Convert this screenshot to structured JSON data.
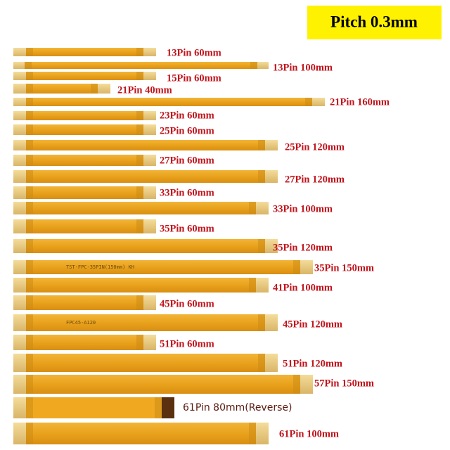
{
  "badge": "Pitch 0.3mm",
  "cables": [
    {
      "label": "13Pin 60mm"
    },
    {
      "label": "13Pin 100mm"
    },
    {
      "label": "15Pin 60mm"
    },
    {
      "label": "21Pin 40mm"
    },
    {
      "label": "21Pin 160mm"
    },
    {
      "label": "23Pin 60mm"
    },
    {
      "label": "25Pin 60mm"
    },
    {
      "label": "25Pin 120mm"
    },
    {
      "label": "27Pin 60mm"
    },
    {
      "label": "27Pin 120mm"
    },
    {
      "label": "33Pin 60mm"
    },
    {
      "label": "33Pin 100mm"
    },
    {
      "label": "35Pin 60mm"
    },
    {
      "label": "35Pin 120mm"
    },
    {
      "label": "35Pin 150mm",
      "print": "TST-FPC-35PIN(150mm) KH"
    },
    {
      "label": "41Pin 100mm"
    },
    {
      "label": "45Pin 60mm"
    },
    {
      "label": "45Pin 120mm",
      "print": "FPC45-A120"
    },
    {
      "label": "51Pin 60mm"
    },
    {
      "label": "51Pin 120mm"
    },
    {
      "label": "57Pin 150mm"
    },
    {
      "label": "61Pin 80mm(Reverse)"
    },
    {
      "label": "61Pin 100mm"
    }
  ]
}
